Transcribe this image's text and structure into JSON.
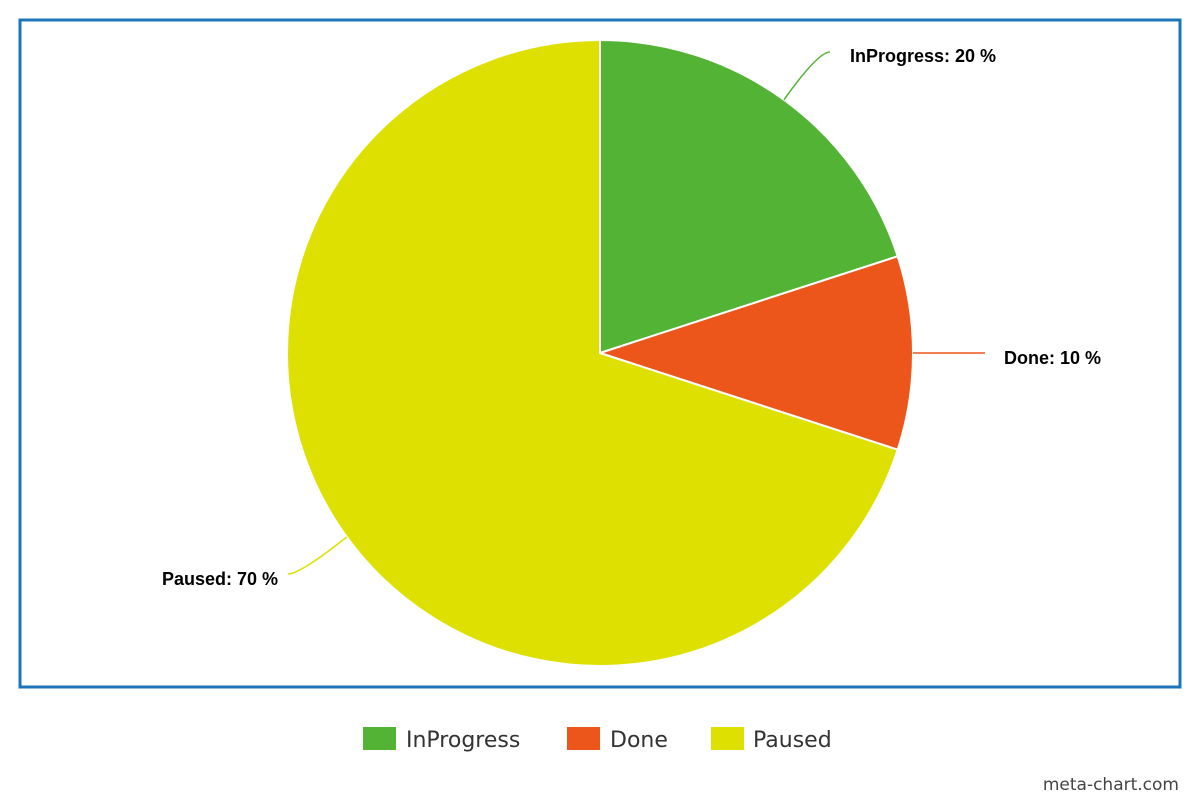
{
  "chart_data": {
    "type": "pie",
    "title": "",
    "slices": [
      {
        "name": "InProgress",
        "value": 20,
        "label": "InProgress: 20 %",
        "color": "#52b335"
      },
      {
        "name": "Done",
        "value": 10,
        "label": "Done: 10 %",
        "color": "#ed561b"
      },
      {
        "name": "Paused",
        "value": 70,
        "label": "Paused: 70 %",
        "color": "#dde000"
      }
    ],
    "legend": {
      "placement": "bottom",
      "entries": [
        "InProgress",
        "Done",
        "Paused"
      ]
    },
    "frame_color": "#1c74bb"
  },
  "watermark": "meta-chart.com"
}
